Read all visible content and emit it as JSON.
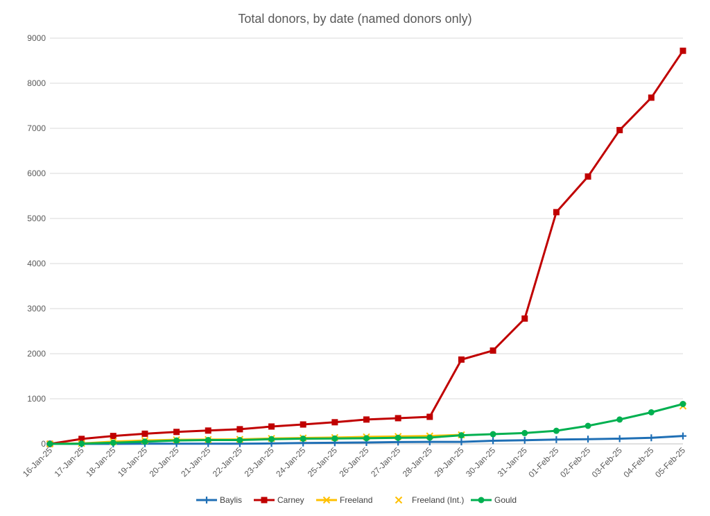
{
  "chart_data": {
    "type": "line",
    "title": "Total donors, by date (named donors only)",
    "xlabel": "",
    "ylabel": "",
    "categories": [
      "16-Jan-25",
      "17-Jan-25",
      "18-Jan-25",
      "19-Jan-25",
      "20-Jan-25",
      "21-Jan-25",
      "22-Jan-25",
      "23-Jan-25",
      "24-Jan-25",
      "25-Jan-25",
      "26-Jan-25",
      "27-Jan-25",
      "28-Jan-25",
      "29-Jan-25",
      "30-Jan-25",
      "31-Jan-25",
      "01-Feb-25",
      "02-Feb-25",
      "03-Feb-25",
      "04-Feb-25",
      "05-Feb-25"
    ],
    "ylim": [
      0,
      9000
    ],
    "yticks": [
      0,
      1000,
      2000,
      3000,
      4000,
      5000,
      6000,
      7000,
      8000,
      9000
    ],
    "grid": "horizontal",
    "legend_position": "bottom",
    "series": [
      {
        "name": "Baylis",
        "color": "#1f6fb5",
        "marker": "plus",
        "line": true,
        "values": [
          0,
          0,
          0,
          5,
          5,
          5,
          5,
          10,
          20,
          25,
          30,
          40,
          45,
          45,
          70,
          80,
          95,
          105,
          115,
          135,
          175
        ]
      },
      {
        "name": "Carney",
        "color": "#c00000",
        "marker": "square",
        "line": true,
        "values": [
          0,
          110,
          175,
          225,
          265,
          295,
          325,
          385,
          430,
          480,
          540,
          570,
          600,
          1870,
          2070,
          2780,
          5140,
          5930,
          6960,
          7680,
          8720
        ]
      },
      {
        "name": "Freeland",
        "color": "#ffc000",
        "marker": "x",
        "line": true,
        "values": [
          0,
          10,
          50,
          75,
          90,
          95,
          100,
          120,
          130,
          140,
          155,
          165,
          175,
          200,
          null,
          null,
          null,
          null,
          null,
          null,
          null
        ]
      },
      {
        "name": "Freeland (Int.)",
        "color": "#ffc000",
        "marker": "x",
        "line": false,
        "values": [
          null,
          null,
          null,
          null,
          null,
          null,
          null,
          null,
          null,
          null,
          null,
          null,
          null,
          null,
          null,
          null,
          null,
          null,
          null,
          null,
          840
        ]
      },
      {
        "name": "Gould",
        "color": "#00b050",
        "marker": "circle",
        "line": true,
        "values": [
          0,
          5,
          25,
          50,
          75,
          85,
          85,
          105,
          115,
          120,
          125,
          135,
          140,
          190,
          215,
          240,
          290,
          400,
          540,
          700,
          885
        ]
      }
    ]
  }
}
